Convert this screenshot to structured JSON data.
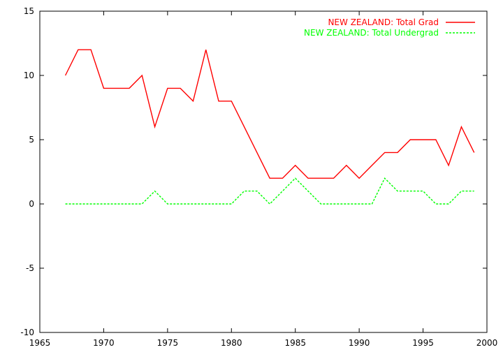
{
  "chart_data": {
    "type": "line",
    "title": "",
    "xlabel": "",
    "ylabel": "",
    "xlim": [
      1965,
      2000
    ],
    "ylim": [
      -10,
      15
    ],
    "x_ticks": [
      1965,
      1970,
      1975,
      1980,
      1985,
      1990,
      1995,
      2000
    ],
    "y_ticks": [
      -10,
      -5,
      0,
      5,
      10,
      15
    ],
    "grid": false,
    "legend_position": "top-right",
    "x": [
      1967,
      1968,
      1969,
      1970,
      1971,
      1972,
      1973,
      1974,
      1975,
      1976,
      1977,
      1978,
      1979,
      1980,
      1981,
      1982,
      1983,
      1984,
      1985,
      1986,
      1987,
      1988,
      1989,
      1990,
      1991,
      1992,
      1993,
      1994,
      1995,
      1996,
      1997,
      1998,
      1999
    ],
    "series": [
      {
        "name": "NEW ZEALAND: Total Grad",
        "color": "#ff0000",
        "dash": "solid",
        "values": [
          10,
          12,
          12,
          9,
          9,
          9,
          10,
          6,
          9,
          9,
          8,
          12,
          8,
          8,
          6,
          4,
          2,
          2,
          3,
          2,
          2,
          2,
          3,
          2,
          3,
          4,
          4,
          5,
          5,
          5,
          3,
          6,
          4
        ]
      },
      {
        "name": "NEW ZEALAND: Total Undergrad",
        "color": "#00ff00",
        "dash": "dashed",
        "values": [
          0,
          0,
          0,
          0,
          0,
          0,
          0,
          1,
          0,
          0,
          0,
          0,
          0,
          0,
          1,
          1,
          0,
          1,
          2,
          1,
          0,
          0,
          0,
          0,
          0,
          2,
          1,
          1,
          1,
          0,
          0,
          1,
          1
        ]
      }
    ]
  }
}
